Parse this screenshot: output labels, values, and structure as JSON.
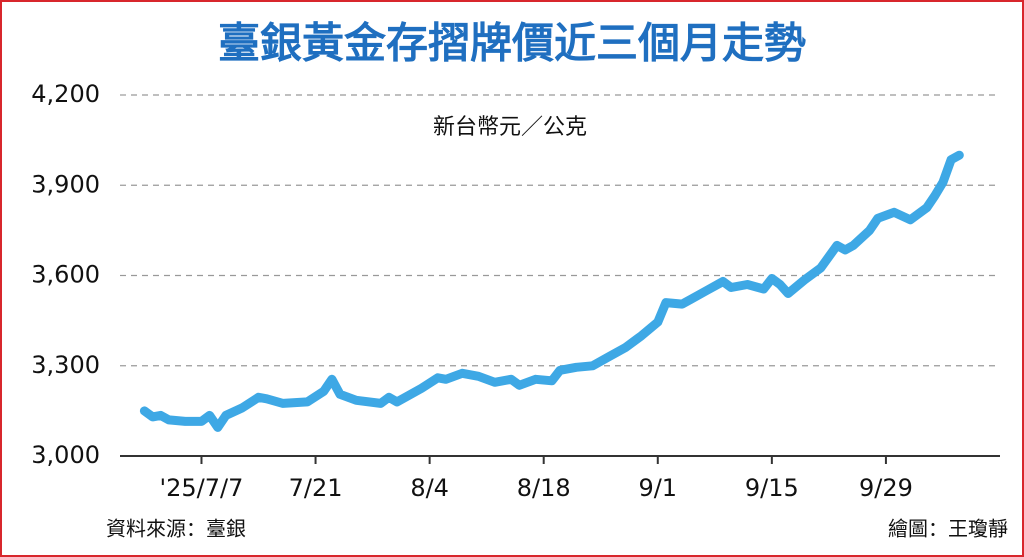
{
  "chart_data": {
    "type": "line",
    "title": "臺銀黃金存摺牌價近三個月走勢",
    "unit_label": "新台幣元／公克",
    "source": "資料來源：臺銀",
    "credit": "繪圖：王瓊靜",
    "x": [
      181,
      182,
      183,
      184,
      186,
      188,
      189,
      190,
      191,
      193,
      195,
      196,
      198,
      201,
      203,
      204,
      205,
      207,
      210,
      211,
      212,
      215,
      217,
      218,
      220,
      222,
      224,
      226,
      227,
      229,
      231,
      232,
      234,
      236,
      238,
      240,
      242,
      244,
      245,
      247,
      248,
      250,
      252,
      253,
      255,
      257,
      258,
      259,
      260,
      262,
      264,
      266,
      267,
      268,
      270,
      271,
      273,
      275,
      277,
      278,
      279,
      280,
      281
    ],
    "series": [
      {
        "name": "牌價",
        "color": "#3ea8e5",
        "values": [
          3150,
          3130,
          3135,
          3120,
          3115,
          3115,
          3135,
          3095,
          3135,
          3160,
          3195,
          3190,
          3175,
          3180,
          3215,
          3255,
          3205,
          3185,
          3175,
          3195,
          3180,
          3225,
          3260,
          3255,
          3275,
          3265,
          3245,
          3255,
          3235,
          3255,
          3250,
          3285,
          3295,
          3300,
          3330,
          3360,
          3400,
          3445,
          3510,
          3505,
          3520,
          3550,
          3580,
          3560,
          3570,
          3555,
          3590,
          3570,
          3540,
          3585,
          3625,
          3700,
          3685,
          3700,
          3750,
          3790,
          3810,
          3785,
          3825,
          3865,
          3910,
          3985,
          4000
        ]
      }
    ],
    "xlim": [
      178,
      286
    ],
    "xticks": [
      {
        "value": 188,
        "label": "'25/7/7"
      },
      {
        "value": 202,
        "label": "7/21"
      },
      {
        "value": 216,
        "label": "8/4"
      },
      {
        "value": 230,
        "label": "8/18"
      },
      {
        "value": 244,
        "label": "9/1"
      },
      {
        "value": 258,
        "label": "9/15"
      },
      {
        "value": 272,
        "label": "9/29"
      }
    ],
    "ylim": [
      3000,
      4200
    ],
    "yticks": [
      {
        "value": 3000,
        "label": "3,000"
      },
      {
        "value": 3300,
        "label": "3,300"
      },
      {
        "value": 3600,
        "label": "3,600"
      },
      {
        "value": 3900,
        "label": "3,900"
      },
      {
        "value": 4200,
        "label": "4,200"
      }
    ],
    "grid": true
  }
}
